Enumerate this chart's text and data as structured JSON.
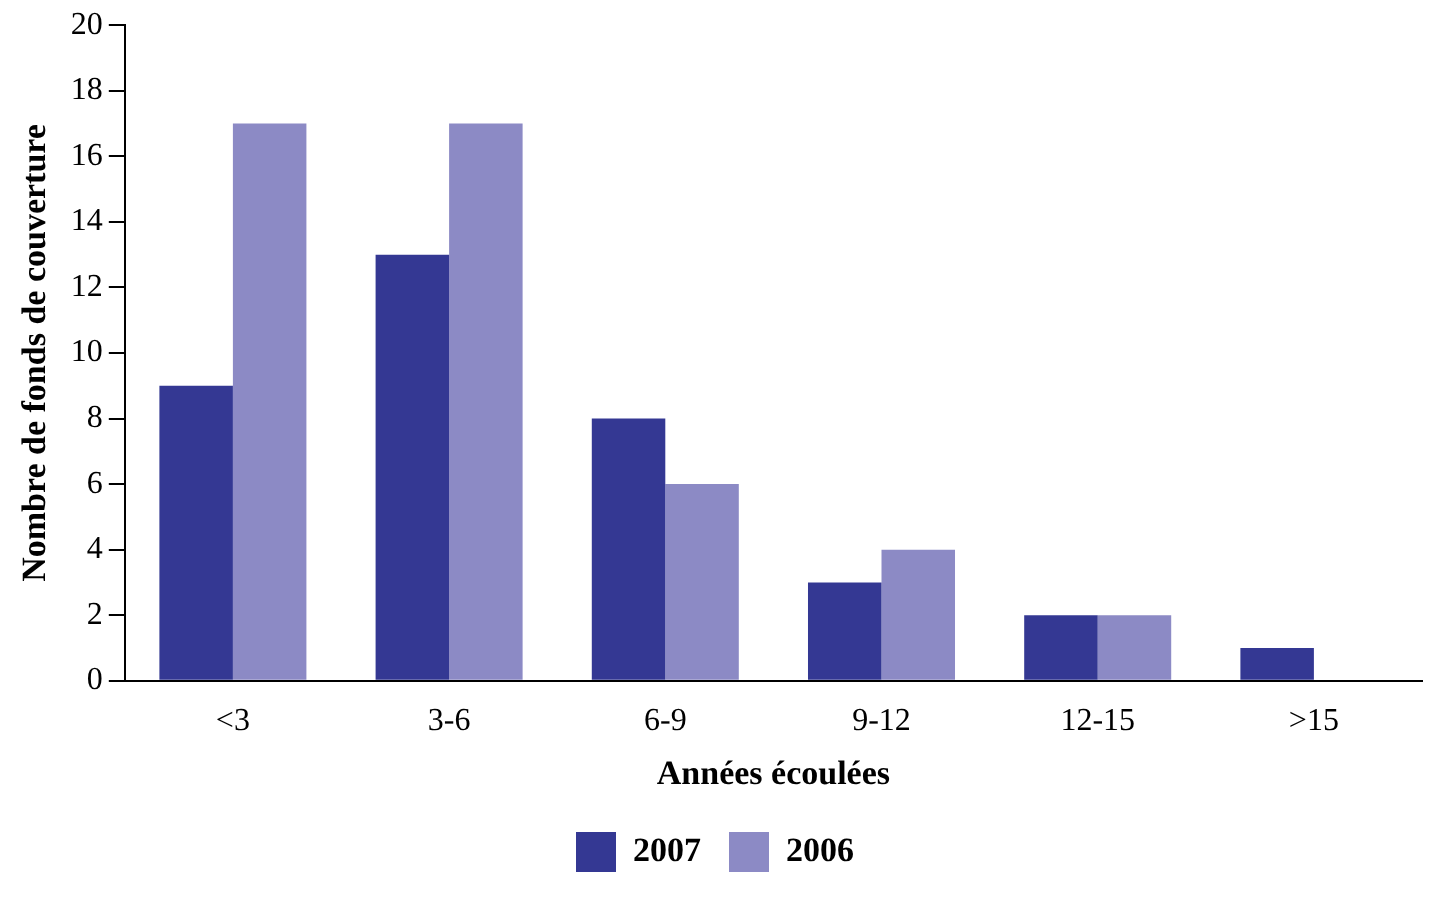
{
  "chart_data": {
    "type": "bar",
    "xlabel": "Années écoulées",
    "ylabel": "Nombre de fonds de couverture",
    "categories": [
      "<3",
      "3-6",
      "6-9",
      "9-12",
      "12-15",
      ">15"
    ],
    "series": [
      {
        "name": "2007",
        "color": "#343893",
        "values": [
          9,
          13,
          8,
          3,
          2,
          1
        ]
      },
      {
        "name": "2006",
        "color": "#8c8ac5",
        "values": [
          17,
          17,
          6,
          4,
          2,
          0
        ]
      }
    ],
    "ylim": [
      0,
      20
    ],
    "yticks": [
      0,
      2,
      4,
      6,
      8,
      10,
      12,
      14,
      16,
      18,
      20
    ],
    "grid": false,
    "legend": "bottom"
  }
}
